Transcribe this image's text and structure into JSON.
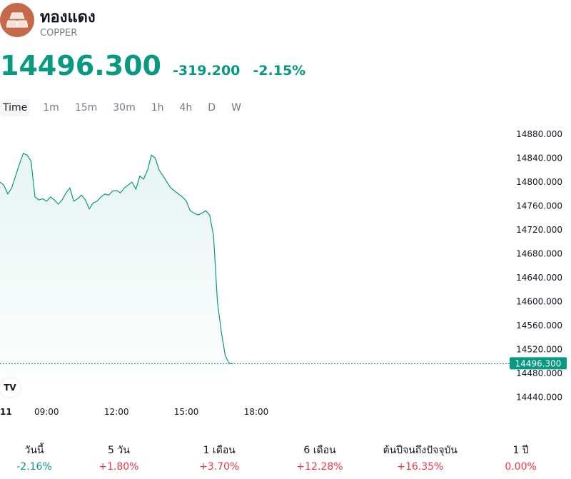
{
  "header": {
    "title": "ทองแดง",
    "subtitle": "COPPER",
    "price": "14496.300",
    "change": "-319.200",
    "change_pct": "-2.15%"
  },
  "tabs": [
    "Time",
    "1m",
    "15m",
    "30m",
    "1h",
    "4h",
    "D",
    "W"
  ],
  "active_tab": "Time",
  "colors": {
    "accent": "#089981",
    "negative": "#089981",
    "positive": "#f23645",
    "logo": "#c4694a"
  },
  "chart_data": {
    "type": "area",
    "last_price_label": "14496.300",
    "y_ticks": [
      "14880.000",
      "14840.000",
      "14800.000",
      "14760.000",
      "14720.000",
      "14680.000",
      "14640.000",
      "14600.000",
      "14560.000",
      "14520.000",
      "14480.000",
      "14440.000"
    ],
    "ylim": [
      14430,
      14900
    ],
    "x_ticks": [
      "11",
      "09:00",
      "12:00",
      "15:00",
      "18:00"
    ],
    "series": [
      {
        "x": [
          "07:00",
          "07:10",
          "07:20",
          "07:30",
          "07:40",
          "07:50",
          "08:00",
          "08:10",
          "08:20",
          "08:30",
          "08:40",
          "08:50",
          "09:00",
          "09:10",
          "09:20",
          "09:30",
          "09:40",
          "09:50",
          "10:00",
          "10:10",
          "10:20",
          "10:30",
          "10:40",
          "10:50",
          "11:00",
          "11:10",
          "11:20",
          "11:30",
          "11:40",
          "11:50",
          "12:00",
          "12:10",
          "12:20",
          "12:30",
          "12:40",
          "12:50",
          "13:00",
          "13:10",
          "13:20",
          "13:30",
          "13:40",
          "13:50",
          "14:00",
          "14:10",
          "14:20",
          "14:30",
          "14:40",
          "14:50",
          "15:00",
          "15:10",
          "15:20",
          "15:30",
          "15:40",
          "15:50",
          "16:00",
          "16:10",
          "16:20",
          "16:30",
          "16:40",
          "16:50",
          "17:00",
          "17:10",
          "17:20",
          "17:30",
          "17:40",
          "17:50",
          "18:00",
          "18:05",
          "18:10",
          "18:15",
          "18:20",
          "18:25",
          "18:30"
        ],
        "values": [
          14800,
          14795,
          14780,
          14790,
          14810,
          14830,
          14848,
          14845,
          14835,
          14775,
          14770,
          14772,
          14768,
          14775,
          14770,
          14763,
          14770,
          14782,
          14790,
          14768,
          14772,
          14778,
          14770,
          14755,
          14765,
          14768,
          14775,
          14780,
          14778,
          14785,
          14786,
          14782,
          14790,
          14795,
          14800,
          14788,
          14810,
          14805,
          14820,
          14845,
          14840,
          14820,
          14810,
          14800,
          14790,
          14785,
          14780,
          14775,
          14768,
          14752,
          14748,
          14745,
          14748,
          14752,
          14745,
          14710,
          14600,
          14550,
          14510,
          14497,
          14496,
          14496,
          14496,
          14496,
          14496,
          14496,
          14496,
          14496,
          14496,
          14496,
          14496,
          14496,
          14496
        ]
      }
    ]
  },
  "performance": [
    {
      "label": "วันนี้",
      "value": "-2.16%",
      "dir": "neg"
    },
    {
      "label": "5 วัน",
      "value": "+1.80%",
      "dir": "pos"
    },
    {
      "label": "1 เดือน",
      "value": "+3.70%",
      "dir": "pos"
    },
    {
      "label": "6 เดือน",
      "value": "+12.28%",
      "dir": "pos"
    },
    {
      "label": "ต้นปีจนถึงปัจจุบัน",
      "value": "+16.35%",
      "dir": "pos"
    },
    {
      "label": "1 ปี",
      "value": "0.00%",
      "dir": "pos"
    }
  ],
  "tv_logo": "TV"
}
